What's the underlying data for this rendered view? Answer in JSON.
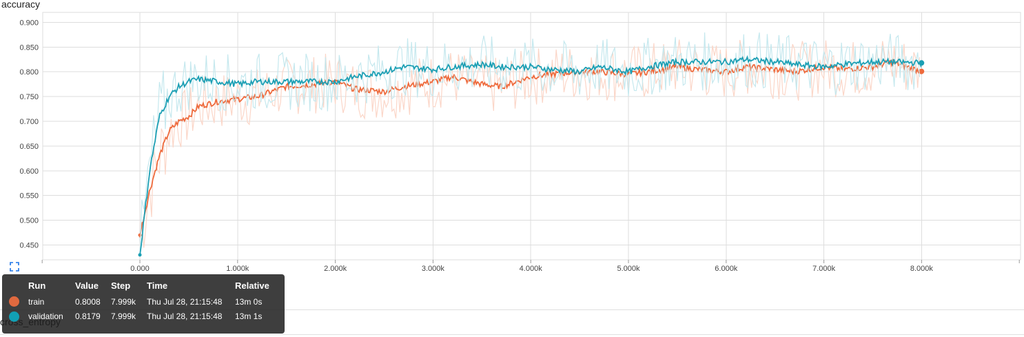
{
  "chart_data": {
    "type": "line",
    "title": "accuracy",
    "xlim": [
      -1000,
      10000
    ],
    "ylim": [
      0.42,
      0.92
    ],
    "x_ticks": [
      "0.000",
      "1.000k",
      "2.000k",
      "3.000k",
      "4.000k",
      "5.000k",
      "6.000k",
      "7.000k",
      "8.000k"
    ],
    "y_ticks": [
      "0.450",
      "0.500",
      "0.550",
      "0.600",
      "0.650",
      "0.700",
      "0.750",
      "0.800",
      "0.850",
      "0.900"
    ],
    "grid": true,
    "smoothed_lines": true,
    "series": [
      {
        "name": "train",
        "color": "#ee6a3c",
        "raw_color": "#fbd6c8",
        "x": [
          0,
          100,
          200,
          300,
          400,
          500,
          600,
          800,
          1000,
          1200,
          1500,
          1800,
          2000,
          2200,
          2500,
          2700,
          3000,
          3200,
          3500,
          3700,
          4000,
          4200,
          4500,
          4700,
          5000,
          5200,
          5500,
          5700,
          6000,
          6200,
          6500,
          6700,
          7000,
          7200,
          7500,
          7700,
          7999
        ],
        "values": [
          0.47,
          0.56,
          0.63,
          0.68,
          0.7,
          0.71,
          0.73,
          0.74,
          0.745,
          0.75,
          0.77,
          0.775,
          0.78,
          0.765,
          0.76,
          0.77,
          0.78,
          0.79,
          0.775,
          0.77,
          0.79,
          0.795,
          0.8,
          0.8,
          0.795,
          0.8,
          0.81,
          0.805,
          0.8,
          0.81,
          0.805,
          0.8,
          0.81,
          0.805,
          0.81,
          0.82,
          0.8008
        ]
      },
      {
        "name": "validation",
        "color": "#1b9fb4",
        "raw_color": "#c5e8ee",
        "x": [
          0,
          100,
          200,
          300,
          400,
          500,
          600,
          800,
          1000,
          1200,
          1500,
          1800,
          2000,
          2200,
          2500,
          2700,
          3000,
          3200,
          3500,
          3700,
          4000,
          4200,
          4500,
          4700,
          5000,
          5200,
          5500,
          5700,
          6000,
          6200,
          6500,
          6700,
          7000,
          7200,
          7500,
          7700,
          7999
        ],
        "values": [
          0.43,
          0.6,
          0.71,
          0.75,
          0.77,
          0.78,
          0.785,
          0.78,
          0.775,
          0.78,
          0.78,
          0.78,
          0.78,
          0.79,
          0.8,
          0.81,
          0.805,
          0.81,
          0.815,
          0.81,
          0.81,
          0.805,
          0.8,
          0.81,
          0.8,
          0.81,
          0.82,
          0.82,
          0.82,
          0.825,
          0.82,
          0.815,
          0.81,
          0.815,
          0.82,
          0.82,
          0.8179
        ]
      }
    ]
  },
  "tooltip": {
    "headers": [
      "Run",
      "Value",
      "Step",
      "Time",
      "Relative"
    ],
    "rows": [
      {
        "color": "#e0693f",
        "run": "train",
        "value": "0.8008",
        "step": "7.999k",
        "time": "Thu Jul 28, 21:15:48",
        "relative": "13m 0s"
      },
      {
        "color": "#12a0b5",
        "run": "validation",
        "value": "0.8179",
        "step": "7.999k",
        "time": "Thu Jul 28, 21:15:48",
        "relative": "13m 1s"
      }
    ]
  },
  "under_label": "cross_entropy",
  "expand_icon": "expand-icon"
}
